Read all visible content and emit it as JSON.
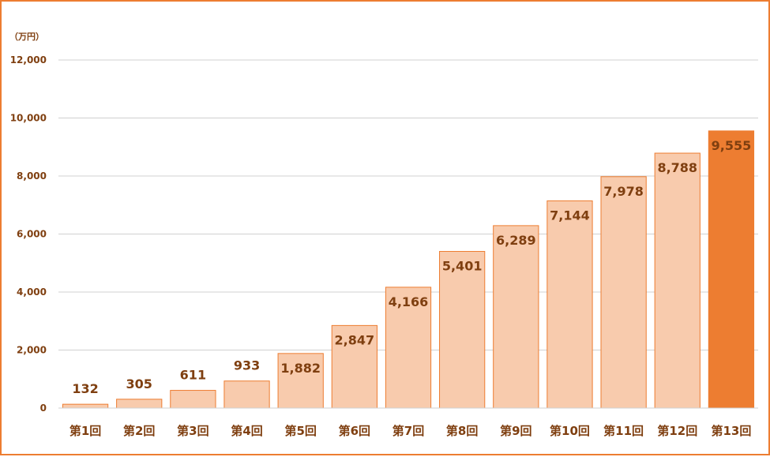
{
  "chart_data": {
    "type": "bar",
    "unit_label": "（万円）",
    "categories": [
      "第1回",
      "第2回",
      "第3回",
      "第4回",
      "第5回",
      "第6回",
      "第7回",
      "第8回",
      "第9回",
      "第10回",
      "第11回",
      "第12回",
      "第13回"
    ],
    "values": [
      132,
      305,
      611,
      933,
      1882,
      2847,
      4166,
      5401,
      6289,
      7144,
      7978,
      8788,
      9555
    ],
    "value_labels": [
      "132",
      "305",
      "611",
      "933",
      "1,882",
      "2,847",
      "4,166",
      "5,401",
      "6,289",
      "7,144",
      "7,978",
      "8,788",
      "9,555"
    ],
    "ylim": [
      0,
      12000
    ],
    "yticks": [
      0,
      2000,
      4000,
      6000,
      8000,
      10000,
      12000
    ],
    "ytick_labels": [
      "0",
      "2,000",
      "4,000",
      "6,000",
      "8,000",
      "10,000",
      "12,000"
    ],
    "grid": true,
    "colors": {
      "bar": "#F8CBAD",
      "bar_edge": "#ED7D31",
      "highlight_bar": "#ED7D31",
      "text": "#7F3F10",
      "grid": "#D0D0D0",
      "frame": "#ED7D31"
    }
  }
}
